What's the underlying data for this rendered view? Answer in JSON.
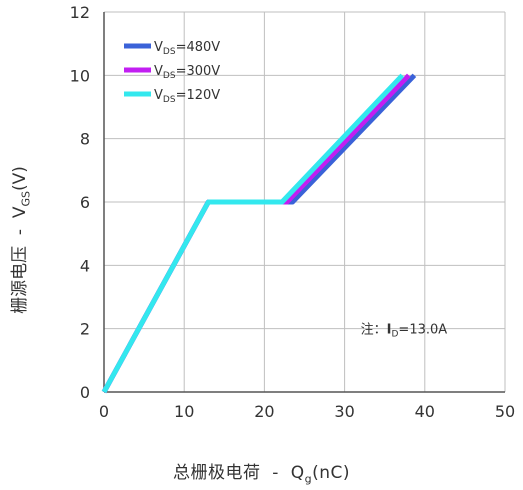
{
  "chart_data": {
    "type": "line",
    "title": "",
    "xlabel": "总栅极电荷",
    "xlabel_sep": "-",
    "xlabel_sym": "Q",
    "xlabel_sub": "g",
    "xlabel_unit": "(nC)",
    "ylabel": "栅源电压",
    "ylabel_sep": "-",
    "ylabel_sym": "V",
    "ylabel_sub": "GS",
    "ylabel_unit": "(V)",
    "xlim": [
      0,
      50
    ],
    "ylim": [
      0,
      12
    ],
    "xticks": [
      "0",
      "10",
      "20",
      "30",
      "40",
      "50"
    ],
    "yticks": [
      "0",
      "2",
      "4",
      "6",
      "8",
      "10",
      "12"
    ],
    "grid": true,
    "legend_position": "top-left",
    "series": [
      {
        "name_main": "V",
        "name_sub": "DS",
        "name_rest": "=480V",
        "color": "#3a62d8",
        "x": [
          0,
          13,
          23.5,
          38.7
        ],
        "y": [
          0,
          6,
          6,
          10
        ]
      },
      {
        "name_main": "V",
        "name_sub": "DS",
        "name_rest": "=300V",
        "color": "#c21ef2",
        "x": [
          0,
          13,
          22.8,
          38.0
        ],
        "y": [
          0,
          6,
          6,
          10
        ]
      },
      {
        "name_main": "V",
        "name_sub": "DS",
        "name_rest": "=120V",
        "color": "#33e8ee",
        "x": [
          0,
          13,
          22.2,
          37.2
        ],
        "y": [
          0,
          6,
          6,
          10
        ]
      }
    ],
    "annotation": {
      "prefix": "注：",
      "sym": "I",
      "sub": "D",
      "rest": "=13.0A",
      "x": 32,
      "y": 2
    }
  }
}
